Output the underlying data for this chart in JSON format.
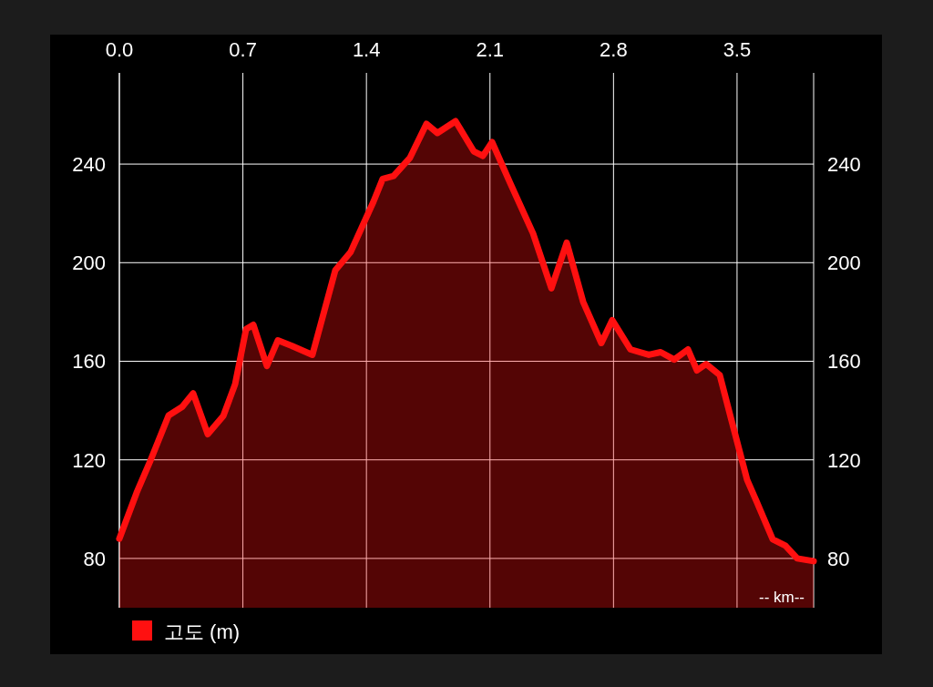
{
  "chart_data": {
    "type": "area",
    "xlabel": "-- km--",
    "legend": "bottom left",
    "grid": true,
    "xlim": [
      0,
      3.934
    ],
    "xticks": [
      {
        "value": 0,
        "label": "0.0"
      },
      0.7,
      1.4,
      2.1,
      2.8,
      3.5
    ],
    "ylim": [
      60,
      277
    ],
    "yticks": [
      80,
      120,
      160,
      200,
      240
    ],
    "y2lim": [
      60,
      277
    ],
    "y2ticks": [
      80,
      120,
      160,
      200,
      240
    ],
    "x": [
      0,
      0.098,
      0.176,
      0.279,
      0.356,
      0.418,
      0.501,
      0.589,
      0.656,
      0.718,
      0.759,
      0.836,
      0.898,
      0.976,
      1.094,
      1.224,
      1.311,
      1.44,
      1.492,
      1.554,
      1.647,
      1.74,
      1.802,
      1.905,
      2.008,
      2.06,
      2.112,
      2.215,
      2.344,
      2.448,
      2.535,
      2.628,
      2.731,
      2.793,
      2.896,
      3.0,
      3.067,
      3.144,
      3.222,
      3.273,
      3.325,
      3.402,
      3.469,
      3.557,
      3.609,
      3.702,
      3.774,
      3.841,
      3.934
    ],
    "series": [
      {
        "name": "고도 (m)",
        "color": "#ff1010",
        "values": [
          88,
          106.7,
          119.7,
          138,
          141.5,
          147,
          130.4,
          137.8,
          150.7,
          173,
          174.8,
          158.1,
          168.5,
          166.3,
          162.6,
          197,
          204.4,
          224.8,
          234,
          235.2,
          242.6,
          256.3,
          252.6,
          257.4,
          245.2,
          243.3,
          248.9,
          232.2,
          211.9,
          189.6,
          208.1,
          184.1,
          167.4,
          176.7,
          164.8,
          162.6,
          163.7,
          160.7,
          164.8,
          156.3,
          158.9,
          154.4,
          135.9,
          111.9,
          103.4,
          87.8,
          85.2,
          80,
          78.9
        ]
      }
    ]
  }
}
